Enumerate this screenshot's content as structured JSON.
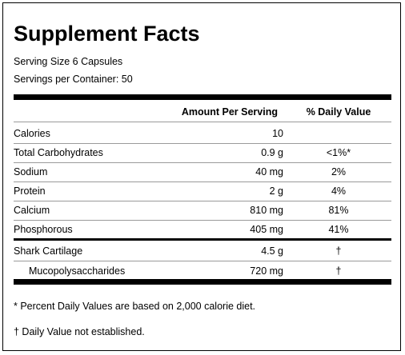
{
  "title": "Supplement Facts",
  "serving": {
    "size_label": "Serving Size 6 Capsules",
    "per_container_label": "Servings per Container: 50"
  },
  "header": {
    "amount": "Amount Per Serving",
    "daily_value": "% Daily Value"
  },
  "rows": [
    {
      "name": "Calories",
      "amount": "10",
      "dv": ""
    },
    {
      "name": "Total Carbohydrates",
      "amount": "0.9 g",
      "dv": "<1%*"
    },
    {
      "name": "Sodium",
      "amount": "40 mg",
      "dv": "2%"
    },
    {
      "name": "Protein",
      "amount": "2 g",
      "dv": "4%"
    },
    {
      "name": "Calcium",
      "amount": "810 mg",
      "dv": "81%"
    },
    {
      "name": "Phosphorous",
      "amount": "405 mg",
      "dv": "41%"
    },
    {
      "name": "Shark Cartilage",
      "amount": "4.5 g",
      "dv": "†"
    },
    {
      "name": "Mucopolysaccharides",
      "amount": "720 mg",
      "dv": "†"
    }
  ],
  "footnotes": {
    "percent_dv": "* Percent Daily Values are based on 2,000 calorie diet.",
    "not_established": "† Daily Value not established."
  }
}
